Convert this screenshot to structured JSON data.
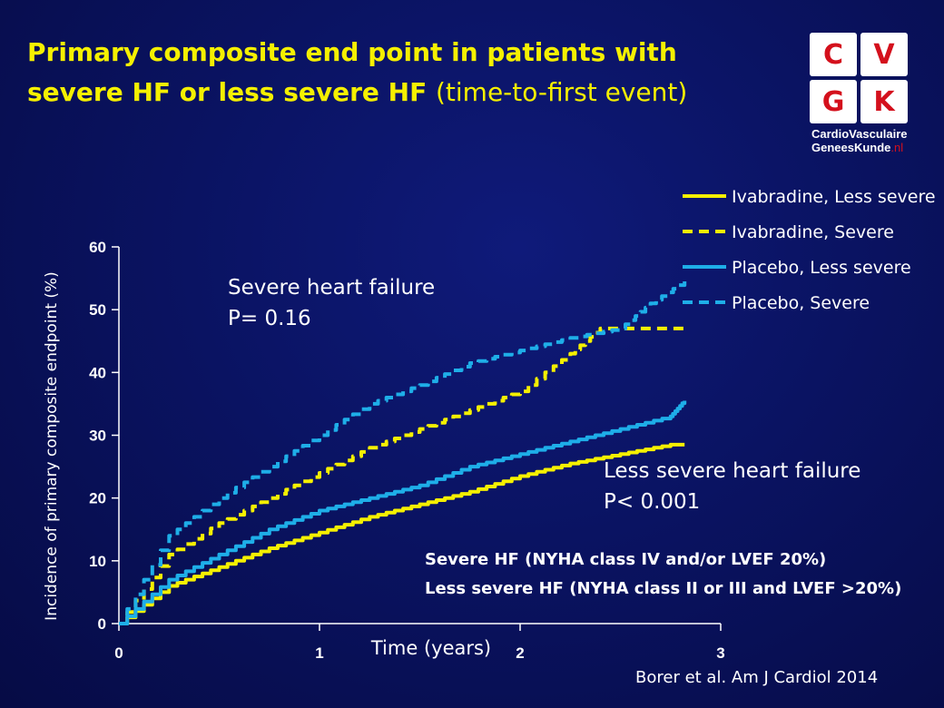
{
  "slide": {
    "title_bold": "Primary composite end point in patients with severe HF or less severe HF",
    "title_light": "(time-to-first event)",
    "citation": "Borer et al. Am J Cardiol 2014",
    "logo": {
      "letters": [
        "C",
        "V",
        "G",
        "K"
      ],
      "line1": "CardioVasculaire",
      "line2": "GeneesKunde",
      "line2_suffix": ".nl"
    },
    "notes": [
      "Severe HF (NYHA class IV and/or LVEF 20%)",
      "Less severe HF (NYHA class II or III and LVEF >20%)"
    ]
  },
  "chart_data": {
    "type": "line",
    "xlabel": "Time (years)",
    "ylabel": "Incidence of primary composite endpoint (%)",
    "xlim": [
      0,
      3
    ],
    "ylim": [
      0,
      60
    ],
    "xticks": [
      0,
      1,
      2,
      3
    ],
    "yticks": [
      0,
      10,
      20,
      30,
      40,
      50,
      60
    ],
    "grid": false,
    "legend_position": "top-right",
    "annotations": [
      {
        "lines": [
          "Severe heart failure",
          "P= 0.16"
        ]
      },
      {
        "lines": [
          "Less severe heart failure",
          "P<  0.001"
        ]
      }
    ],
    "series": [
      {
        "name": "Ivabradine, Less severe",
        "color": "#f5f000",
        "style": "solid",
        "x": [
          0,
          0.25,
          0.5,
          0.75,
          1.0,
          1.25,
          1.5,
          1.75,
          2.0,
          2.25,
          2.5,
          2.75,
          2.82
        ],
        "y": [
          0,
          6,
          9,
          12,
          14.5,
          17,
          19,
          21,
          23.5,
          25.5,
          27,
          28.5,
          28.5
        ]
      },
      {
        "name": "Ivabradine, Severe",
        "color": "#f5f000",
        "style": "dashed",
        "x": [
          0,
          0.25,
          0.5,
          0.75,
          1.0,
          1.25,
          1.5,
          1.75,
          2.0,
          2.25,
          2.4,
          2.6,
          2.82
        ],
        "y": [
          0,
          11,
          16,
          20,
          24,
          28,
          31,
          34,
          37,
          43,
          47,
          47,
          47
        ]
      },
      {
        "name": "Placebo, Less severe",
        "color": "#1eaee8",
        "style": "solid",
        "x": [
          0,
          0.25,
          0.5,
          0.75,
          1.0,
          1.25,
          1.5,
          1.75,
          2.0,
          2.25,
          2.5,
          2.75,
          2.82
        ],
        "y": [
          0,
          7,
          11,
          15,
          18,
          20,
          22,
          25,
          27,
          29,
          31,
          33,
          35.5
        ]
      },
      {
        "name": "Placebo, Severe",
        "color": "#1eaee8",
        "style": "dashed",
        "x": [
          0,
          0.25,
          0.5,
          0.75,
          1.0,
          1.25,
          1.5,
          1.75,
          2.0,
          2.25,
          2.5,
          2.65,
          2.82
        ],
        "y": [
          0,
          14,
          20,
          25,
          30,
          35,
          38,
          41.5,
          43.5,
          45.5,
          47,
          51,
          54.5
        ]
      }
    ]
  }
}
